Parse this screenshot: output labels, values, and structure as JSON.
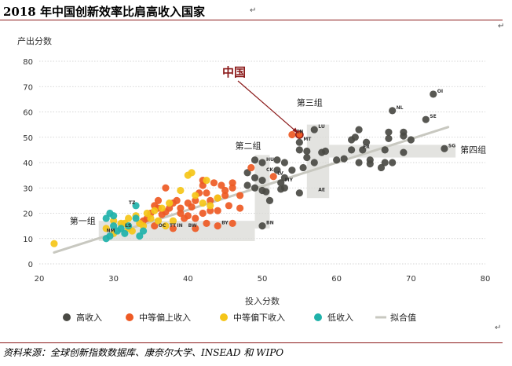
{
  "header": {
    "title": "2018 年中国创新效率比肩高收入国家"
  },
  "source": {
    "text": "资料来源：全球创新指数数据库、康奈尔大学、INSEAD 和 WIPO"
  },
  "colors": {
    "high": "#4a4a44",
    "upper_middle": "#ee5a24",
    "lower_middle": "#f5c518",
    "low": "#20b2aa",
    "fit": "#c8c8c0",
    "groupbox": "#d9d9d6",
    "arrow": "#8b1a1a"
  },
  "chart_data": {
    "type": "scatter",
    "xlabel": "投入分数",
    "ylabel": "产出分数",
    "xlim": [
      20,
      80
    ],
    "ylim": [
      0,
      80
    ],
    "xticks": [
      20,
      30,
      40,
      50,
      60,
      70,
      80
    ],
    "yticks": [
      0,
      10,
      20,
      30,
      40,
      50,
      60,
      70,
      80
    ],
    "grid": "horizontal",
    "legend_position": "bottom",
    "legend": [
      {
        "key": "high",
        "label": "高收入"
      },
      {
        "key": "upper_middle",
        "label": "中等偏上收入"
      },
      {
        "key": "lower_middle",
        "label": "中等偏下收入"
      },
      {
        "key": "low",
        "label": "低收入"
      },
      {
        "key": "fit",
        "label": "拟合值"
      }
    ],
    "fit_line": {
      "x": [
        22,
        75
      ],
      "y": [
        4.5,
        54
      ]
    },
    "groups": [
      {
        "label": "第一组",
        "x0": 28,
        "x1": 49,
        "y0": 9,
        "y1": 17
      },
      {
        "label": "第二组",
        "x0": 49,
        "x1": 51,
        "y0": 14,
        "y1": 43
      },
      {
        "label": "第三组",
        "x0": 56,
        "x1": 59,
        "y0": 26,
        "y1": 55
      },
      {
        "label": "第四组",
        "x0": 59,
        "x1": 76,
        "y0": 42,
        "y1": 47
      }
    ],
    "annotation": {
      "label": "中国",
      "x": 55,
      "y": 51
    },
    "series": [
      {
        "key": "high",
        "points": [
          [
            73,
            67
          ],
          [
            67.5,
            60.5
          ],
          [
            72,
            57
          ],
          [
            69,
            52
          ],
          [
            67,
            52
          ],
          [
            69,
            50.5
          ],
          [
            67,
            49.5
          ],
          [
            70,
            49
          ],
          [
            74.5,
            45.5
          ],
          [
            63,
            53
          ],
          [
            62.5,
            50
          ],
          [
            64,
            48
          ],
          [
            63.5,
            45
          ],
          [
            66.5,
            45
          ],
          [
            69,
            44
          ],
          [
            61,
            41.5
          ],
          [
            64.5,
            41
          ],
          [
            63,
            40
          ],
          [
            66.5,
            40
          ],
          [
            67.5,
            40
          ],
          [
            64.5,
            39.5
          ],
          [
            66,
            38
          ],
          [
            57,
            53
          ],
          [
            55,
            48
          ],
          [
            55,
            45
          ],
          [
            56,
            44.5
          ],
          [
            58.5,
            44.5
          ],
          [
            57,
            40
          ],
          [
            56,
            42
          ],
          [
            52,
            41
          ],
          [
            53,
            40
          ],
          [
            52,
            37
          ],
          [
            54,
            37
          ],
          [
            49,
            41
          ],
          [
            50,
            40
          ],
          [
            48,
            36
          ],
          [
            49,
            34
          ],
          [
            50,
            33
          ],
          [
            48,
            31
          ],
          [
            49,
            30
          ],
          [
            50,
            29
          ],
          [
            50.5,
            28.5
          ],
          [
            51,
            25
          ],
          [
            52.5,
            32
          ],
          [
            53,
            34
          ],
          [
            53,
            30
          ],
          [
            55.5,
            38
          ],
          [
            52.5,
            29.5
          ],
          [
            50,
            15
          ],
          [
            55,
            28
          ],
          [
            60,
            41
          ],
          [
            62,
            45
          ],
          [
            62,
            49
          ],
          [
            58,
            44
          ]
        ]
      },
      {
        "key": "upper_middle",
        "points": [
          [
            54,
            51
          ],
          [
            51.5,
            34.5
          ],
          [
            48.5,
            38
          ],
          [
            46,
            32
          ],
          [
            46,
            30
          ],
          [
            47,
            27
          ],
          [
            45,
            29
          ],
          [
            45,
            27
          ],
          [
            44,
            26
          ],
          [
            43,
            25
          ],
          [
            42.5,
            28
          ],
          [
            42,
            31
          ],
          [
            41.5,
            28
          ],
          [
            41,
            25
          ],
          [
            40.5,
            22.5
          ],
          [
            40,
            24
          ],
          [
            39,
            22
          ],
          [
            38.5,
            25
          ],
          [
            38,
            24
          ],
          [
            37.5,
            22
          ],
          [
            37,
            20.5
          ],
          [
            36.5,
            19.5
          ],
          [
            36,
            22
          ],
          [
            36,
            25
          ],
          [
            35.5,
            23
          ],
          [
            35,
            20
          ],
          [
            34.5,
            18
          ],
          [
            34,
            17
          ],
          [
            37,
            30
          ],
          [
            42,
            33
          ],
          [
            43.5,
            32
          ],
          [
            44.5,
            31
          ],
          [
            40,
            19
          ],
          [
            39.5,
            18
          ],
          [
            41,
            18
          ],
          [
            42,
            20
          ],
          [
            43,
            21
          ],
          [
            44,
            21
          ],
          [
            45.5,
            23
          ],
          [
            47,
            22
          ],
          [
            41,
            14
          ],
          [
            44,
            15
          ],
          [
            46,
            16
          ],
          [
            38,
            14
          ],
          [
            35.5,
            15
          ],
          [
            42.5,
            16
          ],
          [
            39,
            20
          ]
        ]
      },
      {
        "key": "lower_middle",
        "points": [
          [
            22,
            8
          ],
          [
            29,
            14
          ],
          [
            30,
            17
          ],
          [
            31,
            16
          ],
          [
            32,
            14
          ],
          [
            32,
            18
          ],
          [
            33,
            19
          ],
          [
            33.5,
            16
          ],
          [
            34,
            15
          ],
          [
            34.5,
            20
          ],
          [
            35,
            18
          ],
          [
            35.5,
            21
          ],
          [
            36,
            17
          ],
          [
            36.5,
            22
          ],
          [
            37,
            15
          ],
          [
            37.5,
            24
          ],
          [
            38,
            17
          ],
          [
            39,
            29
          ],
          [
            40,
            35
          ],
          [
            40.5,
            36
          ],
          [
            41,
            27
          ],
          [
            42,
            24
          ],
          [
            42.5,
            33
          ],
          [
            43,
            23
          ],
          [
            44,
            26
          ],
          [
            31.5,
            16
          ],
          [
            32.5,
            13
          ],
          [
            30,
            12
          ]
        ]
      },
      {
        "key": "low",
        "points": [
          [
            29,
            18
          ],
          [
            29.5,
            20
          ],
          [
            30,
            19
          ],
          [
            30,
            15
          ],
          [
            30.5,
            13
          ],
          [
            31,
            14
          ],
          [
            31.5,
            12
          ],
          [
            32,
            15
          ],
          [
            33,
            18
          ],
          [
            33,
            23
          ],
          [
            29,
            10
          ],
          [
            29.5,
            11
          ],
          [
            34,
            13
          ],
          [
            33.5,
            11
          ]
        ]
      }
    ],
    "labels": [
      {
        "text": "OI",
        "x": 73,
        "y": 67
      },
      {
        "text": "NL",
        "x": 67.5,
        "y": 60.5
      },
      {
        "text": "SE",
        "x": 72,
        "y": 57
      },
      {
        "text": "SG",
        "x": 74.5,
        "y": 45.5
      },
      {
        "text": "FR",
        "x": 63,
        "y": 45
      },
      {
        "text": "CN",
        "x": 54,
        "y": 51
      },
      {
        "text": "LU",
        "x": 57,
        "y": 53
      },
      {
        "text": "MT",
        "x": 55,
        "y": 48
      },
      {
        "text": "HU",
        "x": 50,
        "y": 40
      },
      {
        "text": "CK",
        "x": 50,
        "y": 36
      },
      {
        "text": "LV",
        "x": 51.5,
        "y": 34.5
      },
      {
        "text": "MY",
        "x": 52.5,
        "y": 32
      },
      {
        "text": "AE",
        "x": 57,
        "y": 28
      },
      {
        "text": "BN",
        "x": 50,
        "y": 15
      },
      {
        "text": "BY",
        "x": 44,
        "y": 15
      },
      {
        "text": "TZ",
        "x": 31.5,
        "y": 23
      },
      {
        "text": "IN",
        "x": 38,
        "y": 14
      },
      {
        "text": "BW",
        "x": 39.5,
        "y": 14
      },
      {
        "text": "OC",
        "x": 35.5,
        "y": 14
      },
      {
        "text": "TT",
        "x": 37,
        "y": 14
      },
      {
        "text": "LS",
        "x": 31,
        "y": 14
      },
      {
        "text": "NM",
        "x": 28.5,
        "y": 12
      }
    ]
  }
}
